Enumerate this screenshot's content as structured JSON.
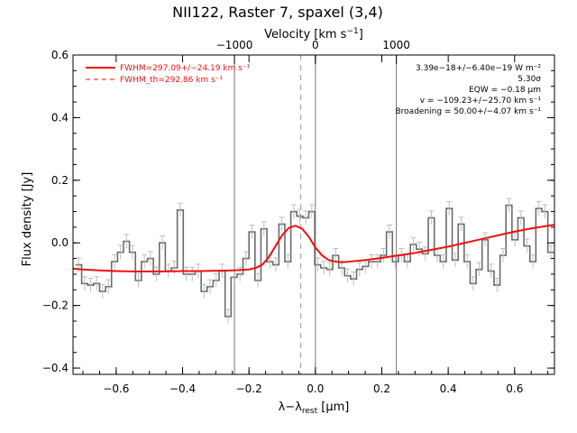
{
  "chart_data": {
    "type": "line",
    "title": "NII122, Raster 7, spaxel (3,4)",
    "xlabel": "λ−λrest [μm]",
    "xlabel_parts": {
      "main": "λ−λ",
      "sub": "rest",
      "unit": " [μm]"
    },
    "ylabel": "Flux density [Jy]",
    "top_axis_label": "Velocity [km s⁻¹]",
    "top_axis_label_parts": {
      "main": "Velocity [km s",
      "sup": "−1",
      "end": "]"
    },
    "xlim": [
      -0.73,
      0.72
    ],
    "ylim": [
      -0.42,
      0.6
    ],
    "xticks": [
      -0.6,
      -0.4,
      -0.2,
      0.0,
      0.2,
      0.4,
      0.6
    ],
    "xtick_labels": [
      "−0.6",
      "−0.4",
      "−0.2",
      "0.0",
      "0.2",
      "0.4",
      "0.6"
    ],
    "yticks": [
      -0.4,
      -0.2,
      0.0,
      0.2,
      0.4,
      0.6
    ],
    "ytick_labels": [
      "−0.4",
      "−0.2",
      "0.0",
      "0.2",
      "0.4",
      "0.6"
    ],
    "top_ticks_um": [
      -0.2438,
      0.0,
      0.2438
    ],
    "top_tick_labels": [
      "−1000",
      "0",
      "1000"
    ],
    "vlines_solid": [
      -0.2438,
      0.0,
      0.2438
    ],
    "vline_dashed": -0.044,
    "series": [
      {
        "name": "FWHM=297.09+/−24.19 km s⁻¹",
        "color": "#ee1111",
        "style": "solid",
        "x": [
          -0.73,
          -0.7,
          -0.65,
          -0.6,
          -0.55,
          -0.5,
          -0.45,
          -0.4,
          -0.35,
          -0.3,
          -0.25,
          -0.2,
          -0.18,
          -0.16,
          -0.14,
          -0.12,
          -0.1,
          -0.08,
          -0.06,
          -0.04,
          -0.02,
          0.0,
          0.02,
          0.04,
          0.06,
          0.08,
          0.1,
          0.15,
          0.2,
          0.25,
          0.3,
          0.35,
          0.4,
          0.45,
          0.5,
          0.55,
          0.6,
          0.65,
          0.72
        ],
        "y": [
          -0.082,
          -0.085,
          -0.088,
          -0.09,
          -0.091,
          -0.091,
          -0.091,
          -0.09,
          -0.09,
          -0.089,
          -0.088,
          -0.085,
          -0.08,
          -0.07,
          -0.045,
          -0.01,
          0.025,
          0.048,
          0.055,
          0.045,
          0.02,
          -0.015,
          -0.04,
          -0.055,
          -0.06,
          -0.062,
          -0.06,
          -0.055,
          -0.048,
          -0.04,
          -0.032,
          -0.022,
          -0.012,
          0.0,
          0.012,
          0.024,
          0.036,
          0.046,
          0.058
        ]
      },
      {
        "name": "FWHM_th=292.86 km s⁻¹",
        "color": "#ee1111",
        "style": "dashed",
        "x": [],
        "y": []
      },
      {
        "name": "data",
        "color": "#707070",
        "style": "steps",
        "x": [
          -0.713,
          -0.695,
          -0.677,
          -0.659,
          -0.641,
          -0.623,
          -0.605,
          -0.587,
          -0.569,
          -0.551,
          -0.533,
          -0.515,
          -0.497,
          -0.479,
          -0.461,
          -0.443,
          -0.425,
          -0.407,
          -0.389,
          -0.371,
          -0.353,
          -0.335,
          -0.317,
          -0.299,
          -0.281,
          -0.263,
          -0.245,
          -0.227,
          -0.209,
          -0.191,
          -0.173,
          -0.155,
          -0.137,
          -0.119,
          -0.101,
          -0.083,
          -0.065,
          -0.047,
          -0.029,
          -0.011,
          0.007,
          0.025,
          0.043,
          0.061,
          0.079,
          0.097,
          0.115,
          0.133,
          0.151,
          0.169,
          0.187,
          0.205,
          0.223,
          0.241,
          0.259,
          0.277,
          0.295,
          0.313,
          0.331,
          0.349,
          0.367,
          0.385,
          0.403,
          0.421,
          0.439,
          0.457,
          0.475,
          0.493,
          0.511,
          0.529,
          0.547,
          0.565,
          0.583,
          0.601,
          0.619,
          0.637,
          0.655,
          0.673,
          0.691,
          0.709
        ],
        "y": [
          -0.07,
          -0.13,
          -0.135,
          -0.13,
          -0.155,
          -0.14,
          -0.06,
          -0.03,
          0.005,
          -0.03,
          -0.12,
          -0.06,
          -0.05,
          -0.1,
          0.0,
          -0.09,
          -0.08,
          0.105,
          -0.1,
          -0.1,
          -0.09,
          -0.155,
          -0.14,
          -0.12,
          -0.09,
          -0.235,
          -0.11,
          -0.1,
          -0.05,
          0.035,
          -0.12,
          0.045,
          -0.06,
          -0.07,
          0.06,
          -0.06,
          0.1,
          0.085,
          0.08,
          0.1,
          -0.07,
          -0.08,
          -0.085,
          -0.04,
          -0.08,
          -0.105,
          -0.115,
          -0.085,
          -0.075,
          -0.06,
          -0.06,
          -0.04,
          0.035,
          -0.06,
          -0.04,
          -0.06,
          -0.005,
          -0.02,
          -0.035,
          0.08,
          -0.04,
          -0.06,
          0.11,
          -0.055,
          0.06,
          -0.06,
          -0.13,
          -0.085,
          0.01,
          -0.09,
          -0.135,
          -0.04,
          0.12,
          0.01,
          0.08,
          -0.01,
          -0.06,
          0.11,
          0.1,
          -0.03
        ]
      }
    ],
    "annotations": [
      "3.39e−18+/−6.40e−19 W m⁻²",
      "5.30σ",
      "EQW = −0.18 μm",
      "v = −109.23+/−25.70 km s⁻¹",
      "Broadening = 50.00+/−4.07 km s⁻¹"
    ],
    "legend_position": "top-left",
    "grid": false
  }
}
